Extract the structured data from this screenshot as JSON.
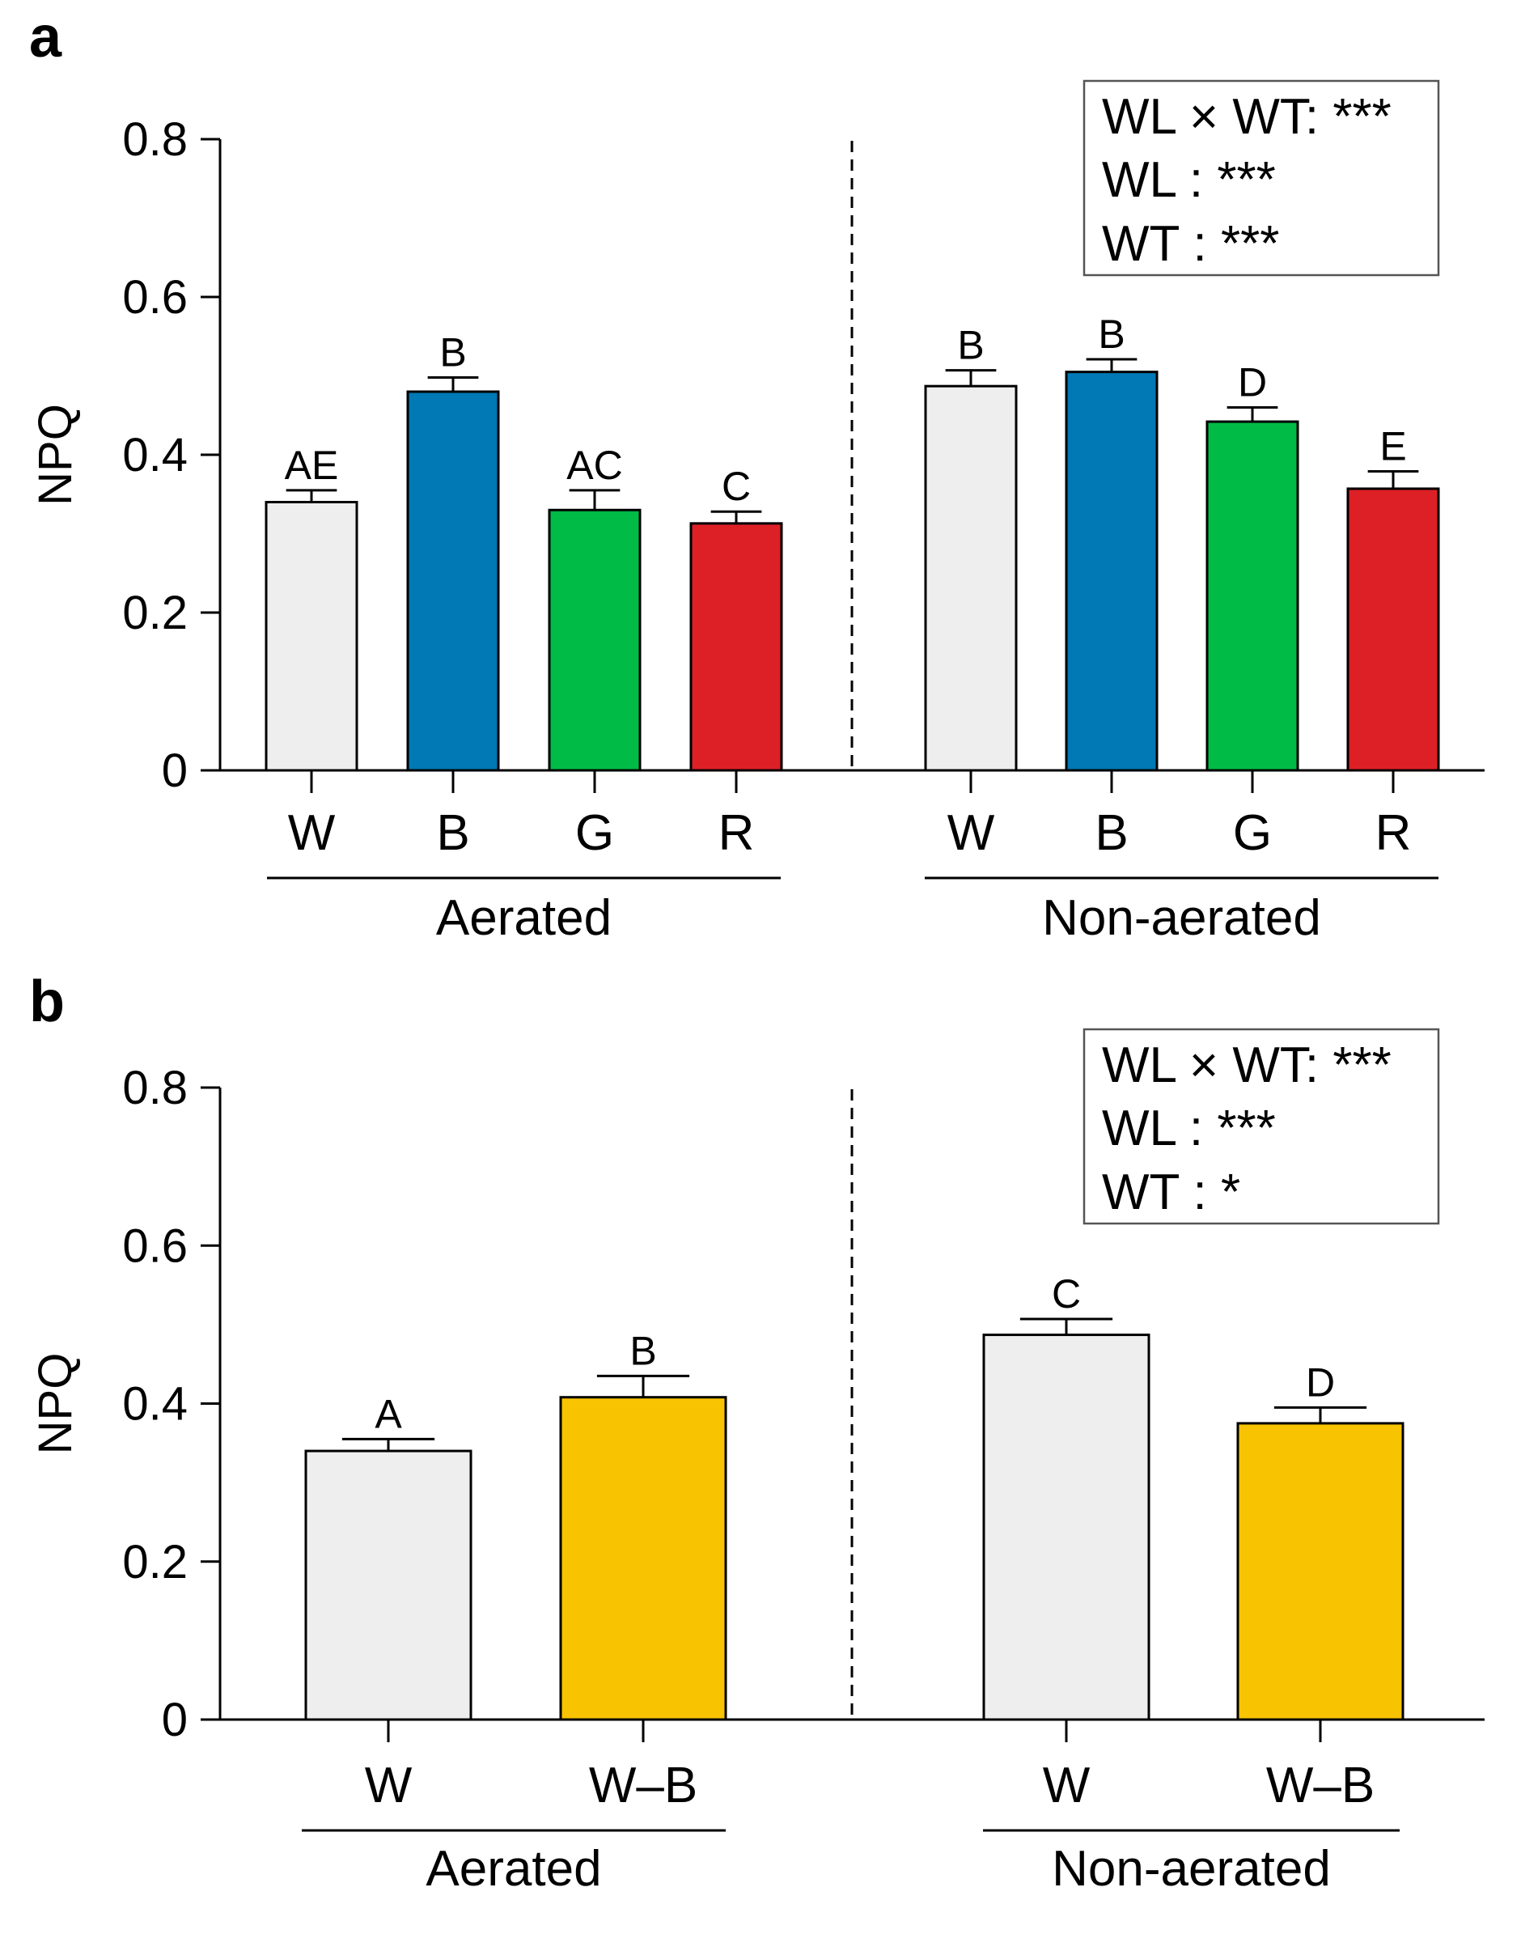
{
  "chart_data": [
    {
      "type": "bar",
      "panel": "a",
      "ylabel": "NPQ",
      "ylim": [
        0,
        0.8
      ],
      "yticks": [
        "0",
        "0.2",
        "0.4",
        "0.6",
        "0.8"
      ],
      "stats": [
        "WL × WT: ***",
        "WL : ***",
        "WT : ***"
      ],
      "groups": [
        {
          "name": "Aerated",
          "bars": [
            {
              "category": "W",
              "value": 0.34,
              "error": 0.015,
              "letter": "AE",
              "color": "#eeeeee"
            },
            {
              "category": "B",
              "value": 0.48,
              "error": 0.018,
              "letter": "B",
              "color": "#0079b5"
            },
            {
              "category": "G",
              "value": 0.33,
              "error": 0.025,
              "letter": "AC",
              "color": "#00bb45"
            },
            {
              "category": "R",
              "value": 0.313,
              "error": 0.015,
              "letter": "C",
              "color": "#dd2026"
            }
          ]
        },
        {
          "name": "Non-aerated",
          "bars": [
            {
              "category": "W",
              "value": 0.487,
              "error": 0.02,
              "letter": "B",
              "color": "#eeeeee"
            },
            {
              "category": "B",
              "value": 0.505,
              "error": 0.016,
              "letter": "B",
              "color": "#0079b5"
            },
            {
              "category": "G",
              "value": 0.442,
              "error": 0.018,
              "letter": "D",
              "color": "#00bb45"
            },
            {
              "category": "R",
              "value": 0.357,
              "error": 0.022,
              "letter": "E",
              "color": "#dd2026"
            }
          ]
        }
      ]
    },
    {
      "type": "bar",
      "panel": "b",
      "ylabel": "NPQ",
      "ylim": [
        0,
        0.8
      ],
      "yticks": [
        "0",
        "0.2",
        "0.4",
        "0.6",
        "0.8"
      ],
      "stats": [
        "WL × WT: ***",
        "WL : ***",
        "WT : *"
      ],
      "groups": [
        {
          "name": "Aerated",
          "bars": [
            {
              "category": "W",
              "value": 0.34,
              "error": 0.015,
              "letter": "A",
              "color": "#eeeeee"
            },
            {
              "category": "W–B",
              "value": 0.408,
              "error": 0.027,
              "letter": "B",
              "color": "#f8c300"
            }
          ]
        },
        {
          "name": "Non-aerated",
          "bars": [
            {
              "category": "W",
              "value": 0.487,
              "error": 0.02,
              "letter": "C",
              "color": "#eeeeee"
            },
            {
              "category": "W–B",
              "value": 0.375,
              "error": 0.02,
              "letter": "D",
              "color": "#f8c300"
            }
          ]
        }
      ]
    }
  ]
}
